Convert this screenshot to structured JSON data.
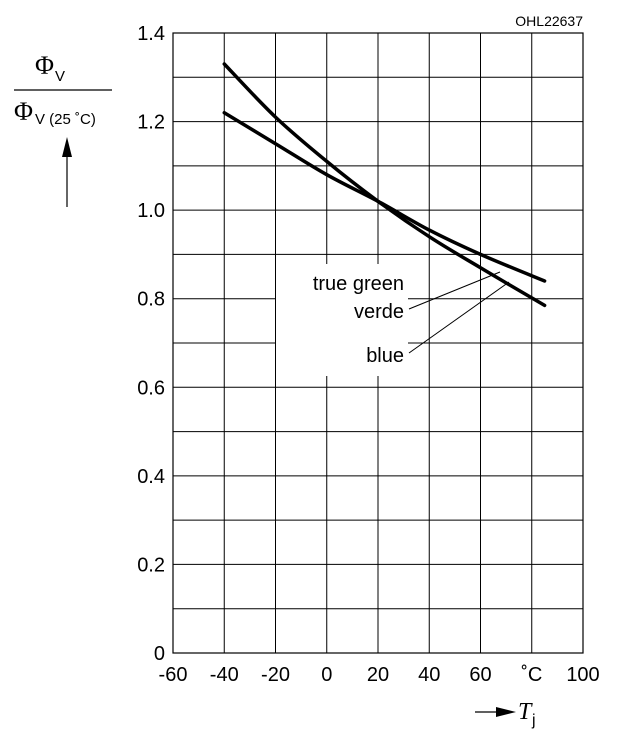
{
  "chart_data": {
    "type": "line",
    "figure_id": "OHL22637",
    "ylabel": {
      "numerator": "Φ",
      "numerator_sub": "V",
      "denominator": "Φ",
      "denominator_sub": "V (25 ˚C)"
    },
    "xlabel": {
      "symbol": "T",
      "sub": "j"
    },
    "x_tick_labels": [
      "-60",
      "-40",
      "-20",
      "0",
      "20",
      "40",
      "60",
      "˚C",
      "100"
    ],
    "x_ticks": [
      -60,
      -40,
      -20,
      0,
      20,
      40,
      60,
      80,
      100
    ],
    "y_tick_labels": [
      "0",
      "0.2",
      "0.4",
      "0.6",
      "0.8",
      "1.0",
      "1.2",
      "1.4"
    ],
    "y_ticks": [
      0,
      0.2,
      0.4,
      0.6,
      0.8,
      1.0,
      1.2,
      1.4
    ],
    "xlim": [
      -60,
      100
    ],
    "ylim": [
      0,
      1.4
    ],
    "grid": true,
    "series": [
      {
        "name": "true green verde",
        "label_lines": [
          "true green",
          "verde"
        ],
        "x": [
          -40,
          -20,
          0,
          20,
          40,
          60,
          85
        ],
        "y": [
          1.22,
          1.15,
          1.08,
          1.02,
          0.955,
          0.9,
          0.84
        ]
      },
      {
        "name": "blue",
        "label_lines": [
          "blue"
        ],
        "x": [
          -40,
          -20,
          0,
          20,
          40,
          60,
          85
        ],
        "y": [
          1.33,
          1.21,
          1.11,
          1.02,
          0.94,
          0.87,
          0.785
        ]
      }
    ]
  }
}
